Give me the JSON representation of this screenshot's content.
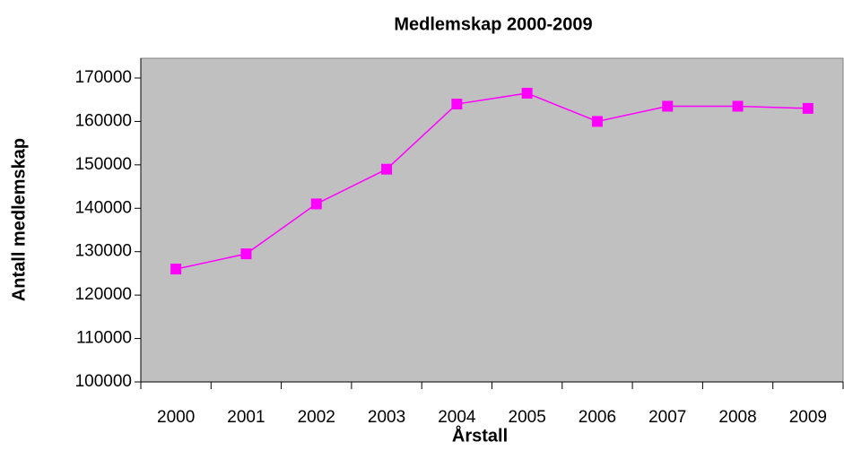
{
  "chart_data": {
    "type": "line",
    "title": "Medlemskap 2000-2009",
    "x_label": "Årstall",
    "y_label": "Antall medlemskap",
    "categories": [
      "2000",
      "2001",
      "2002",
      "2003",
      "2004",
      "2005",
      "2006",
      "2007",
      "2008",
      "2009"
    ],
    "values": [
      126000,
      129500,
      141000,
      149000,
      164000,
      166500,
      160000,
      163500,
      163500,
      163000
    ],
    "color": "#ff00ff",
    "ylim": [
      100000,
      170000
    ],
    "yticks": [
      100000,
      110000,
      120000,
      130000,
      140000,
      150000,
      160000,
      170000
    ],
    "grid": false
  }
}
